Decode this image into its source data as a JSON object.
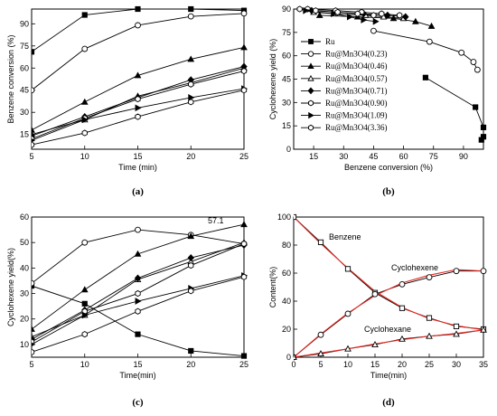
{
  "chart_data": [
    {
      "type": "line",
      "panel_label": "(a)",
      "xlabel": "Time (min)",
      "ylabel": "Benzene conversion (%)",
      "xlim": [
        5,
        25
      ],
      "ylim": [
        5,
        100
      ],
      "xticks": [
        5,
        10,
        15,
        20,
        25
      ],
      "yticks": [
        15,
        30,
        45,
        60,
        75,
        90
      ],
      "series": [
        {
          "marker": "square-filled",
          "x": [
            5,
            10,
            15,
            20,
            25
          ],
          "y": [
            71,
            96,
            100,
            100,
            99
          ]
        },
        {
          "marker": "circle-open",
          "x": [
            5,
            10,
            15,
            20,
            25
          ],
          "y": [
            45,
            73,
            89,
            95,
            97
          ]
        },
        {
          "marker": "triangle-filled",
          "x": [
            5,
            10,
            15,
            20,
            25
          ],
          "y": [
            18,
            37,
            55,
            66,
            74
          ]
        },
        {
          "marker": "triangle-open",
          "x": [
            5,
            10,
            15,
            20,
            25
          ],
          "y": [
            15,
            25,
            41,
            50,
            60
          ]
        },
        {
          "marker": "diamond-filled",
          "x": [
            5,
            10,
            15,
            20,
            25
          ],
          "y": [
            14,
            27,
            40,
            52,
            61
          ]
        },
        {
          "marker": "hexagon-open",
          "x": [
            5,
            10,
            15,
            20,
            25
          ],
          "y": [
            12,
            26,
            39,
            49,
            58
          ]
        },
        {
          "marker": "triangle-right-filled",
          "x": [
            5,
            10,
            15,
            20,
            25
          ],
          "y": [
            11,
            25,
            33,
            40,
            46
          ]
        },
        {
          "marker": "hexagon-open",
          "x": [
            5,
            10,
            15,
            20,
            25
          ],
          "y": [
            8,
            16,
            27,
            37,
            45
          ]
        }
      ]
    },
    {
      "type": "scatter",
      "panel_label": "(b)",
      "xlabel": "Benzene conversion (%)",
      "ylabel": "Cyclohexene yield (%)",
      "xlim": [
        5,
        100
      ],
      "ylim": [
        0,
        90
      ],
      "xticks": [
        15,
        30,
        45,
        60,
        75,
        90
      ],
      "yticks": [
        0,
        15,
        30,
        45,
        60,
        75,
        90
      ],
      "legend_position": "left",
      "series": [
        {
          "name": "Ru",
          "marker": "square-filled",
          "x": [
            71,
            96,
            100,
            100,
            99
          ],
          "y": [
            46,
            27,
            14,
            8,
            6
          ]
        },
        {
          "name": "Ru@Mn3O4(0.23)",
          "marker": "circle-open",
          "x": [
            45,
            73,
            89,
            95,
            97
          ],
          "y": [
            76,
            69,
            62,
            56,
            51
          ]
        },
        {
          "name": "Ru@Mn3O4(0.46)",
          "marker": "triangle-filled",
          "x": [
            18,
            37,
            55,
            66,
            74
          ],
          "y": [
            86,
            85,
            84,
            82,
            79
          ]
        },
        {
          "name": "Ru@Mn3O4(0.57)",
          "marker": "triangle-open",
          "x": [
            15,
            25,
            41,
            50,
            60
          ],
          "y": [
            88,
            87,
            86,
            85,
            84
          ]
        },
        {
          "name": "Ru@Mn3O4(0.71)",
          "marker": "diamond-filled",
          "x": [
            14,
            27,
            40,
            52,
            61
          ],
          "y": [
            89,
            88,
            87,
            86,
            85
          ]
        },
        {
          "name": "Ru@Mn3O4(0.90)",
          "marker": "hexagon-open",
          "x": [
            12,
            26,
            39,
            49,
            58
          ],
          "y": [
            90,
            89,
            88,
            87,
            86
          ]
        },
        {
          "name": "Ru@Mn3O4(1.09)",
          "marker": "triangle-right-filled",
          "x": [
            11,
            25,
            33,
            40,
            46
          ],
          "y": [
            89,
            87,
            85,
            83,
            82
          ]
        },
        {
          "name": "Ru@Mn3O4(3.36)",
          "marker": "hexagon-open",
          "x": [
            8,
            16,
            27,
            37,
            45
          ],
          "y": [
            90,
            89,
            88,
            87,
            86
          ]
        }
      ]
    },
    {
      "type": "line",
      "panel_label": "(c)",
      "xlabel": "Time(min)",
      "ylabel": "Cyclohexene yield(%)",
      "xlim": [
        5,
        25
      ],
      "ylim": [
        5,
        60
      ],
      "xticks": [
        5,
        10,
        15,
        20,
        25
      ],
      "yticks": [
        10,
        20,
        30,
        40,
        50,
        60
      ],
      "annotation": "57.1",
      "series": [
        {
          "marker": "square-filled",
          "x": [
            5,
            10,
            15,
            20,
            25
          ],
          "y": [
            33,
            26,
            14,
            7.5,
            5.5
          ]
        },
        {
          "marker": "circle-open",
          "x": [
            5,
            10,
            15,
            20,
            25
          ],
          "y": [
            34,
            50,
            55,
            53,
            49.5
          ]
        },
        {
          "marker": "triangle-filled",
          "x": [
            5,
            10,
            15,
            20,
            25
          ],
          "y": [
            16,
            31.5,
            45.5,
            52.5,
            57.1
          ]
        },
        {
          "marker": "triangle-open",
          "x": [
            5,
            10,
            15,
            20,
            25
          ],
          "y": [
            13,
            21.5,
            35.5,
            42.5,
            50
          ]
        },
        {
          "marker": "diamond-filled",
          "x": [
            5,
            10,
            15,
            20,
            25
          ],
          "y": [
            12,
            23.5,
            36,
            44,
            49
          ]
        },
        {
          "marker": "hexagon-open",
          "x": [
            5,
            10,
            15,
            20,
            25
          ],
          "y": [
            11,
            23,
            30,
            41,
            49.5
          ]
        },
        {
          "marker": "triangle-right-filled",
          "x": [
            5,
            10,
            15,
            20,
            25
          ],
          "y": [
            10,
            21.5,
            27,
            32,
            37
          ]
        },
        {
          "marker": "hexagon-open",
          "x": [
            5,
            10,
            15,
            20,
            25
          ],
          "y": [
            7,
            14,
            23,
            31,
            36.5
          ]
        }
      ]
    },
    {
      "type": "line",
      "panel_label": "(d)",
      "xlabel": "Time(min)",
      "ylabel": "Content(%)",
      "xlim": [
        0,
        35
      ],
      "ylim": [
        0,
        100
      ],
      "xticks": [
        0,
        5,
        10,
        15,
        20,
        25,
        30,
        35
      ],
      "yticks": [
        0,
        20,
        40,
        60,
        80,
        100
      ],
      "colors": {
        "data": "#000000",
        "fit": "#e8271f"
      },
      "series": [
        {
          "name": "Benzene",
          "marker": "square-open",
          "x": [
            0,
            5,
            10,
            15,
            20,
            25,
            30,
            35
          ],
          "y": [
            100,
            82,
            63,
            46,
            35,
            28,
            22,
            20
          ],
          "fit": [
            100,
            81,
            63.5,
            47,
            35.5,
            27.5,
            22.5,
            19.5
          ]
        },
        {
          "name": "Cyclohexene",
          "marker": "circle-open",
          "x": [
            0,
            5,
            10,
            15,
            20,
            25,
            30,
            35
          ],
          "y": [
            0,
            16,
            31,
            45,
            52,
            57,
            61.5,
            61.5
          ],
          "fit": [
            0,
            16.5,
            31.5,
            44,
            53,
            58.5,
            62.5,
            61.5
          ]
        },
        {
          "name": "Cyclohexane",
          "marker": "triangle-open",
          "x": [
            0,
            5,
            10,
            15,
            20,
            25,
            30,
            35
          ],
          "y": [
            0,
            2.5,
            6,
            9,
            13,
            15,
            16.5,
            19.5
          ],
          "fit": [
            0,
            3,
            6,
            9.5,
            12.5,
            15,
            17,
            19.5
          ]
        }
      ]
    }
  ]
}
